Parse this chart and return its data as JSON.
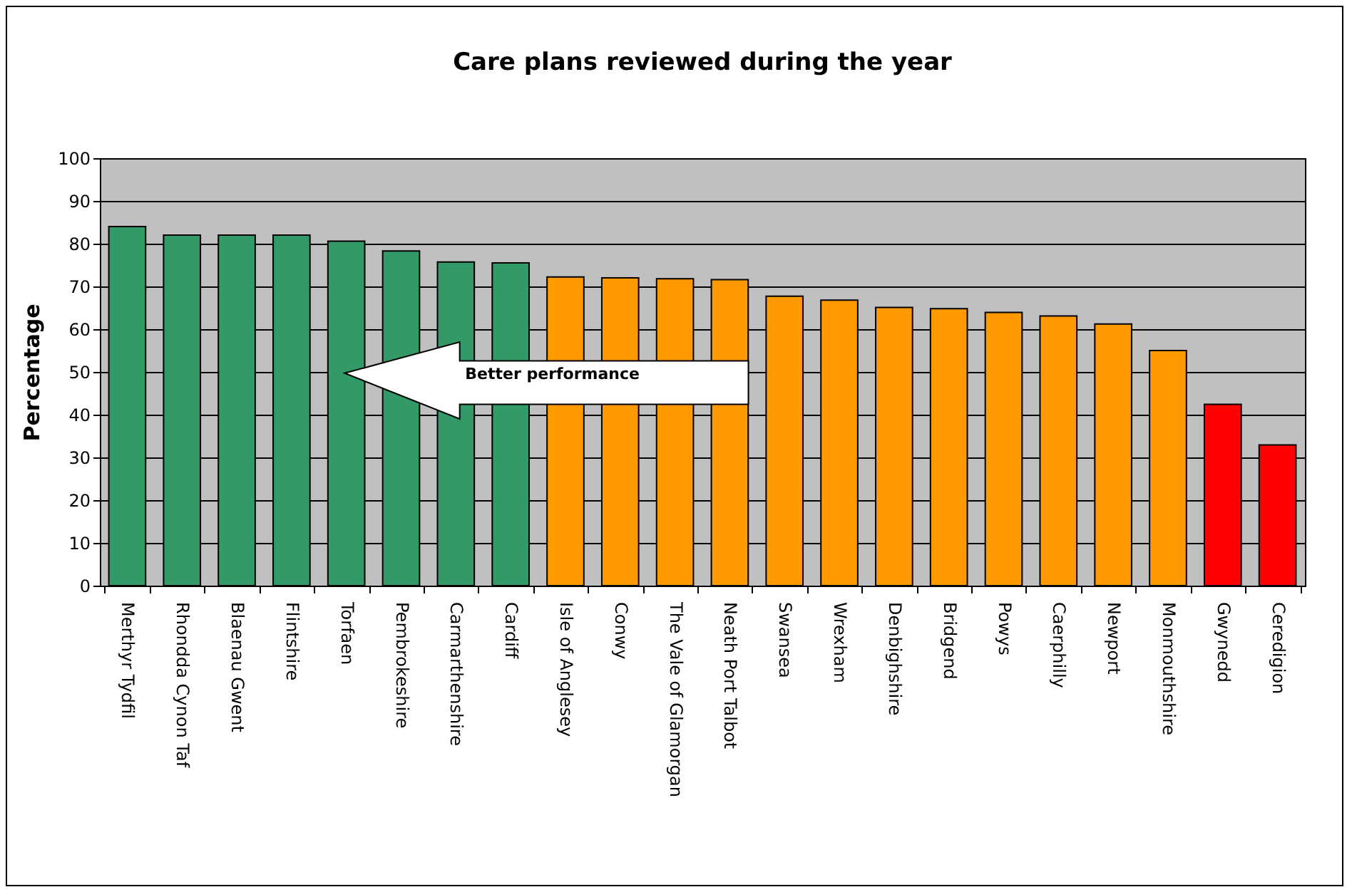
{
  "chart_data": {
    "type": "bar",
    "title": "Care plans reviewed during the year",
    "ylabel": "Percentage",
    "categories": [
      "Merthyr Tydfil",
      "Rhondda Cynon Taf",
      "Blaenau Gwent",
      "Flintshire",
      "Torfaen",
      "Pembrokeshire",
      "Carmarthenshire",
      "Cardiff",
      "Isle of Anglesey",
      "Conwy",
      "The Vale of Glamorgan",
      "Neath Port Talbot",
      "Swansea",
      "Wrexham",
      "Denbighshire",
      "Bridgend",
      "Powys",
      "Caerphilly",
      "Newport",
      "Monmouthshire",
      "Gwynedd",
      "Ceredigion"
    ],
    "values": [
      84,
      82,
      82,
      82,
      80.6,
      78.3,
      75.7,
      75.5,
      72.2,
      72,
      71.8,
      71.6,
      67.7,
      66.8,
      65.1,
      64.8,
      63.9,
      63.1,
      61.2,
      55,
      42.4,
      32.9
    ],
    "colors": [
      "#339966",
      "#339966",
      "#339966",
      "#339966",
      "#339966",
      "#339966",
      "#339966",
      "#339966",
      "#ff9900",
      "#ff9900",
      "#ff9900",
      "#ff9900",
      "#ff9900",
      "#ff9900",
      "#ff9900",
      "#ff9900",
      "#ff9900",
      "#ff9900",
      "#ff9900",
      "#ff9900",
      "#ff0000",
      "#ff0000"
    ],
    "ylim": [
      0,
      100
    ],
    "yticks": [
      0,
      10,
      20,
      30,
      40,
      50,
      60,
      70,
      80,
      90,
      100
    ],
    "grid": "y",
    "legend": false,
    "annotations": [
      "Better performance"
    ]
  }
}
